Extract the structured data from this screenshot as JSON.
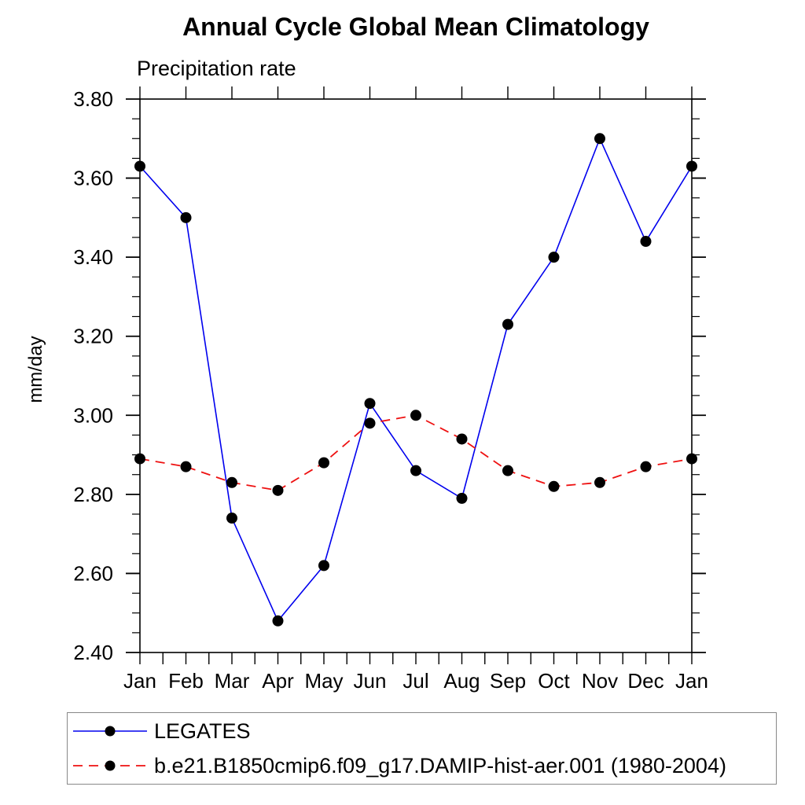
{
  "page": {
    "background_color": "#ffffff",
    "text_color": "#000000"
  },
  "chart_data": {
    "type": "line",
    "title": "Annual Cycle Global Mean Climatology",
    "subtitle": "Precipitation rate",
    "ylabel": "mm/day",
    "xlabel": "",
    "categories": [
      "Jan",
      "Feb",
      "Mar",
      "Apr",
      "May",
      "Jun",
      "Jul",
      "Aug",
      "Sep",
      "Oct",
      "Nov",
      "Dec",
      "Jan"
    ],
    "ylim": [
      2.4,
      3.8
    ],
    "ytick_major_step": 0.2,
    "ytick_minor_step": 0.05,
    "ytick_labels": [
      "2.40",
      "2.60",
      "2.80",
      "3.00",
      "3.20",
      "3.40",
      "3.60",
      "3.80"
    ],
    "xtick_minor_per_month": 2,
    "grid": false,
    "legend_position": "bottom-left-box",
    "axis_color": "#000000",
    "series": [
      {
        "name": "LEGATES",
        "line_color": "#0000ee",
        "line_style": "solid",
        "marker": "filled-circle",
        "marker_color": "#000000",
        "values": [
          3.63,
          3.5,
          2.74,
          2.48,
          2.62,
          3.03,
          2.86,
          2.79,
          3.23,
          3.4,
          3.7,
          3.44,
          3.63
        ]
      },
      {
        "name": "b.e21.B1850cmip6.f09_g17.DAMIP-hist-aer.001 (1980-2004)",
        "line_color": "#ee1111",
        "line_style": "dashed",
        "marker": "filled-circle",
        "marker_color": "#000000",
        "values": [
          2.89,
          2.87,
          2.83,
          2.81,
          2.88,
          2.98,
          3.0,
          2.94,
          2.86,
          2.82,
          2.83,
          2.87,
          2.89
        ]
      }
    ]
  }
}
